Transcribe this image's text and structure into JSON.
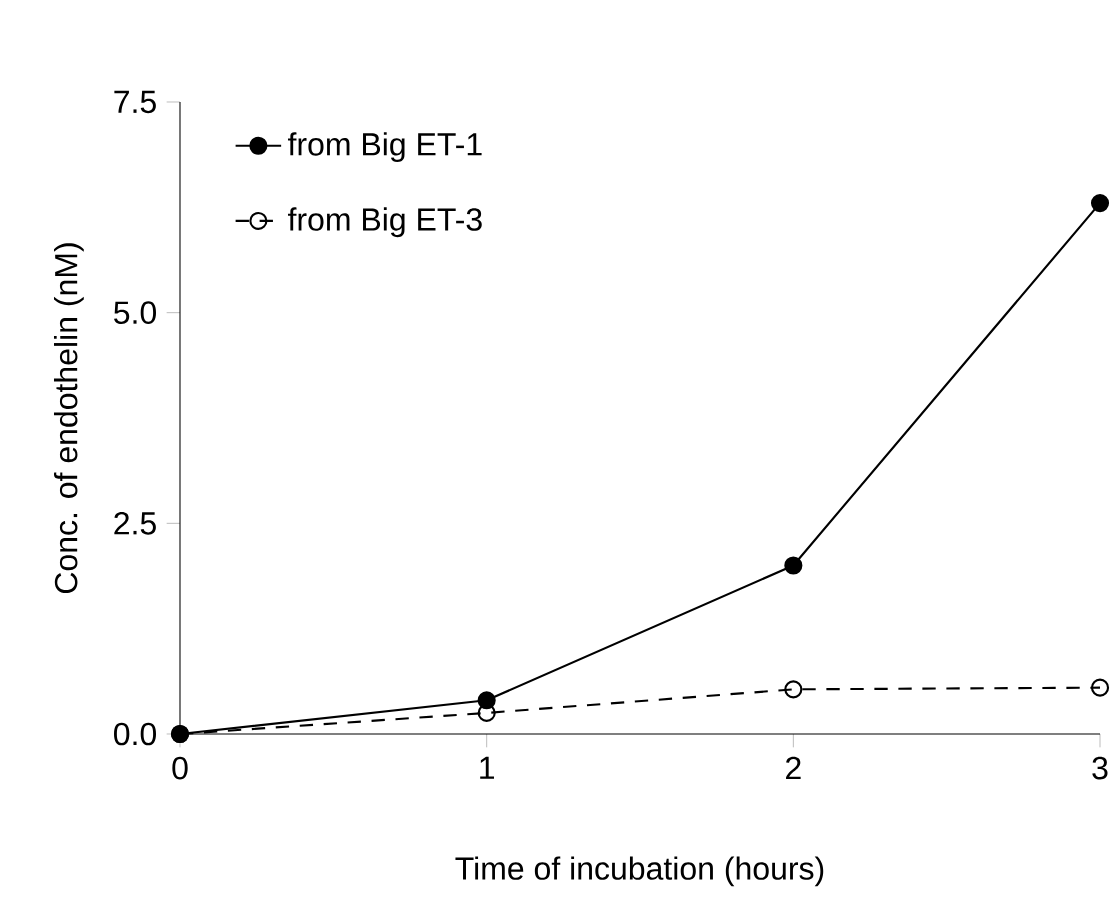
{
  "chart_data": {
    "type": "line",
    "xlabel": "Time of incubation (hours)",
    "ylabel": "Conc. of endothelin (nM)",
    "x": [
      0,
      1,
      2,
      3
    ],
    "series": [
      {
        "name": "from Big ET-1",
        "color": "#000000",
        "values": [
          0,
          0.4,
          2.0,
          6.3
        ],
        "marker": "circle",
        "line_style": "solid"
      },
      {
        "name": "from Big ET-3",
        "color": "#000000",
        "values": [
          0,
          0.25,
          0.53,
          0.55
        ],
        "marker": "circle",
        "line_style": "dashed"
      }
    ],
    "xlim": [
      0,
      3
    ],
    "ylim": [
      0,
      7.5
    ],
    "xticks": [
      0,
      1,
      2,
      3
    ],
    "yticks": [
      {
        "value": 0,
        "label": "0.0"
      },
      {
        "value": 2.5,
        "label": "2.5"
      },
      {
        "value": 5,
        "label": "5.0"
      },
      {
        "value": 7.5,
        "label": "7.5"
      }
    ],
    "legend": "top left",
    "grid": false
  }
}
